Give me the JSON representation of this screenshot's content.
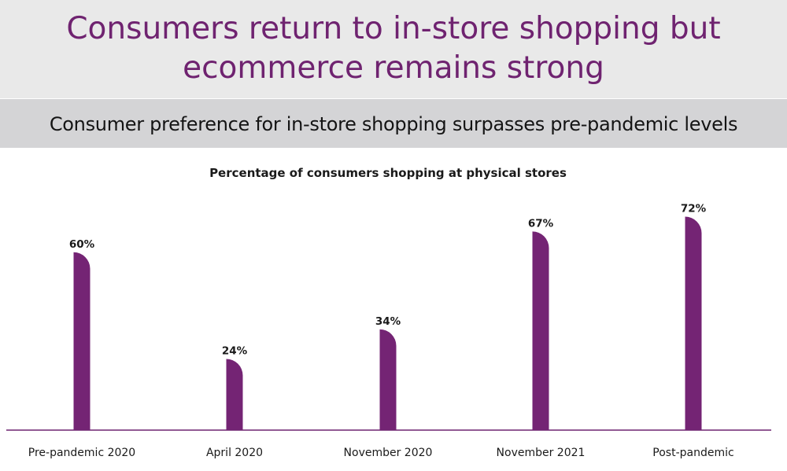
{
  "header": {
    "title": "Consumers return to in-store shopping but\necommerce remains strong",
    "subtitle": "Consumer preference for in-store shopping surpasses pre-pandemic levels"
  },
  "colors": {
    "accent": "#6f2370",
    "title_band": "#e9e9e9",
    "subtitle_band": "#d4d4d6",
    "bar": "#742474",
    "axis": "#6f2370"
  },
  "chart_data": {
    "type": "bar",
    "title": "Percentage of consumers shopping at physical stores",
    "categories": [
      "Pre-pandemic 2020",
      "April 2020",
      "November 2020",
      "November 2021",
      "Post-pandemic"
    ],
    "values": [
      60,
      24,
      34,
      67,
      72
    ],
    "value_labels": [
      "60%",
      "24%",
      "34%",
      "67%",
      "72%"
    ],
    "ylim": [
      0,
      100
    ],
    "xlabel": "",
    "ylabel": "",
    "grid": false,
    "legend": "none"
  }
}
